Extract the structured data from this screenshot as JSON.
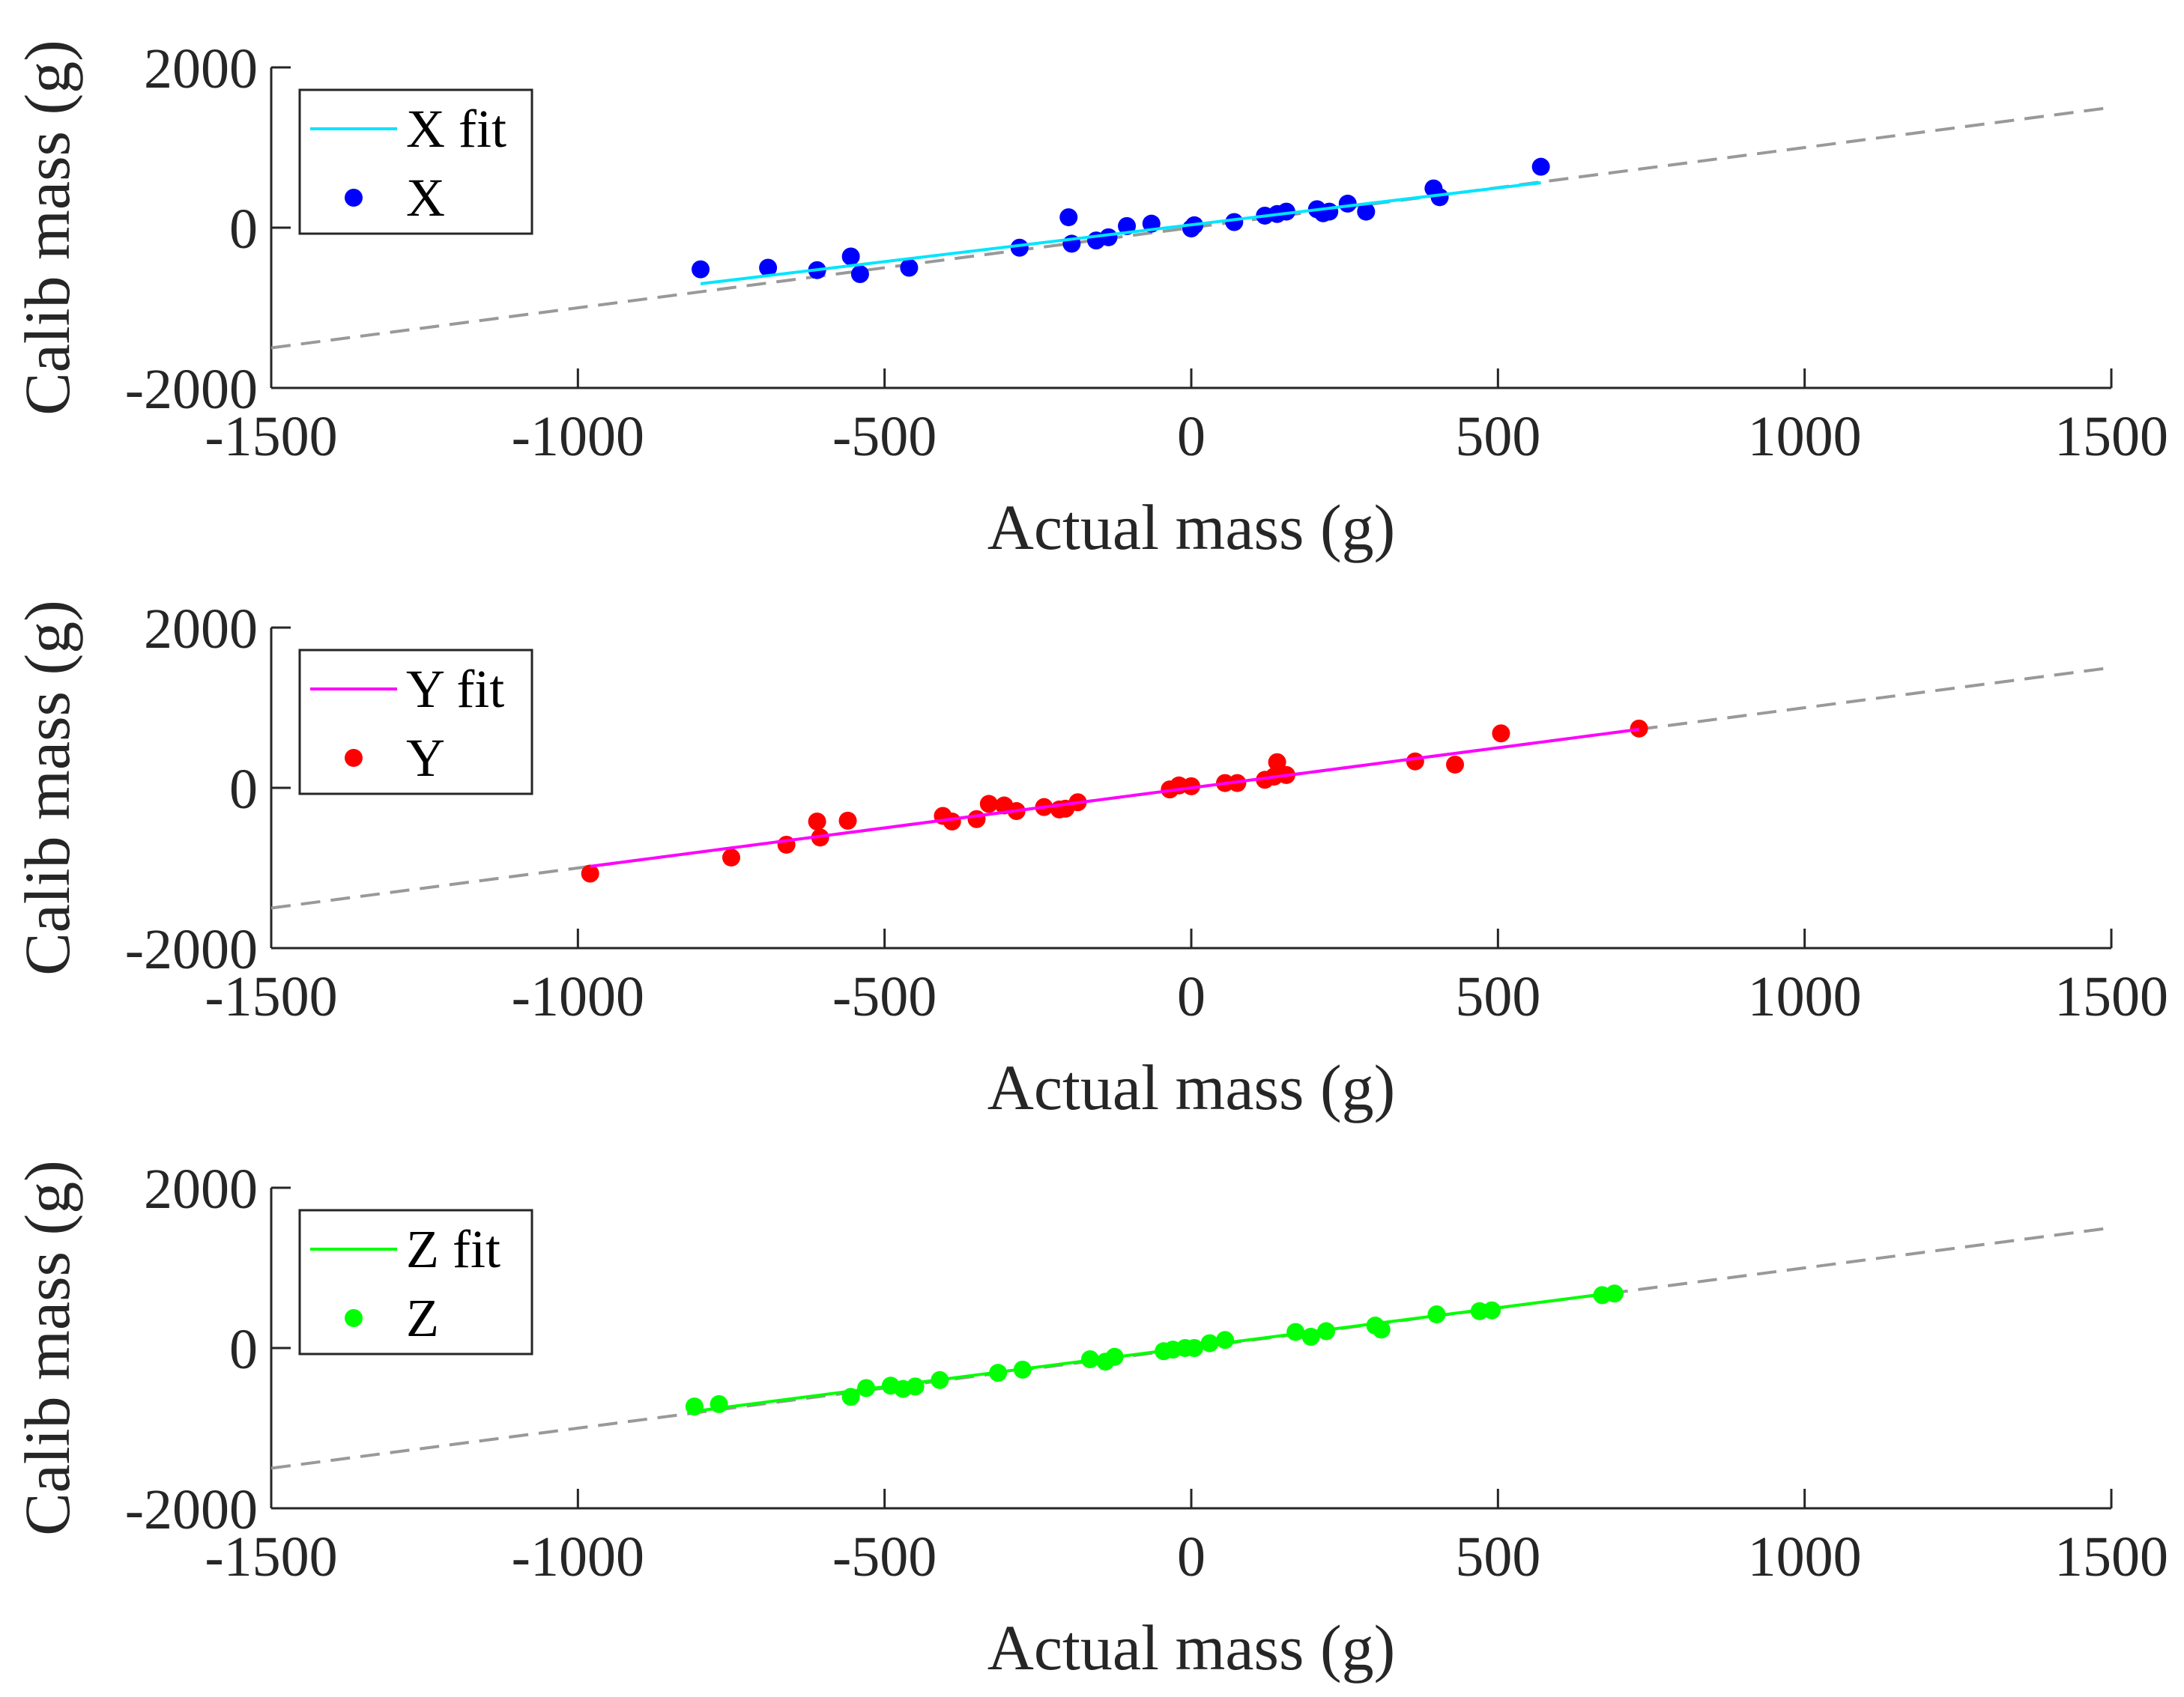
{
  "chart_data": [
    {
      "type": "scatter",
      "xlabel": "Actual mass (g)",
      "ylabel": "Calib mass (g)",
      "xlim": [
        -1500,
        1500
      ],
      "ylim": [
        -2000,
        2000
      ],
      "xticks": [
        -1500,
        -1000,
        -500,
        0,
        500,
        1000,
        1500
      ],
      "yticks": [
        -2000,
        0,
        2000
      ],
      "xtick_labels": [
        "-1500",
        "-1000",
        "-500",
        "0",
        "500",
        "1000",
        "1500"
      ],
      "ytick_labels": [
        "-2000",
        "0",
        "2000"
      ],
      "legend_position": "top-left",
      "reference_line": {
        "x": [
          -1500,
          1500
        ],
        "y": [
          -1500,
          1500
        ],
        "color": "#999999",
        "style": "dashed"
      },
      "fit": {
        "name": "X fit",
        "color": "#00e5ff",
        "x": [
          -800,
          570
        ],
        "y": [
          -700,
          560
        ]
      },
      "series": [
        {
          "name": "X",
          "color": "#0000ff",
          "x": [
            -800,
            -690,
            -610,
            -555,
            -540,
            -460,
            -280,
            -200,
            -195,
            -155,
            -135,
            -105,
            -65,
            0,
            5,
            70,
            120,
            140,
            155,
            205,
            215,
            225,
            255,
            285,
            395,
            405,
            570
          ],
          "y": [
            -520,
            -500,
            -530,
            -360,
            -580,
            -500,
            -250,
            130,
            -200,
            -160,
            -120,
            20,
            50,
            -10,
            30,
            70,
            150,
            170,
            200,
            230,
            180,
            200,
            300,
            200,
            490,
            380,
            760
          ]
        }
      ]
    },
    {
      "type": "scatter",
      "xlabel": "Actual mass (g)",
      "ylabel": "Calib mass (g)",
      "xlim": [
        -1500,
        1500
      ],
      "ylim": [
        -2000,
        2000
      ],
      "xticks": [
        -1500,
        -1000,
        -500,
        0,
        500,
        1000,
        1500
      ],
      "yticks": [
        -2000,
        0,
        2000
      ],
      "xtick_labels": [
        "-1500",
        "-1000",
        "-500",
        "0",
        "500",
        "1000",
        "1500"
      ],
      "ytick_labels": [
        "-2000",
        "0",
        "2000"
      ],
      "legend_position": "top-left",
      "reference_line": {
        "x": [
          -1500,
          1500
        ],
        "y": [
          -1500,
          1500
        ],
        "color": "#999999",
        "style": "dashed"
      },
      "fit": {
        "name": "Y fit",
        "color": "#ff00ff",
        "x": [
          -980,
          730
        ],
        "y": [
          -980,
          730
        ]
      },
      "series": [
        {
          "name": "Y",
          "color": "#ff0000",
          "x": [
            -980,
            -750,
            -660,
            -610,
            -605,
            -560,
            -405,
            -390,
            -350,
            -330,
            -305,
            -285,
            -240,
            -215,
            -205,
            -185,
            -35,
            -20,
            0,
            55,
            75,
            120,
            135,
            140,
            155,
            365,
            430,
            505,
            730
          ],
          "y": [
            -1070,
            -870,
            -710,
            -420,
            -620,
            -410,
            -350,
            -420,
            -390,
            -200,
            -220,
            -290,
            -240,
            -270,
            -260,
            -180,
            -20,
            30,
            20,
            60,
            60,
            100,
            140,
            320,
            160,
            330,
            290,
            680,
            740
          ]
        }
      ]
    },
    {
      "type": "scatter",
      "xlabel": "Actual mass (g)",
      "ylabel": "Calib mass (g)",
      "xlim": [
        -1500,
        1500
      ],
      "ylim": [
        -2000,
        2000
      ],
      "xticks": [
        -1500,
        -1000,
        -500,
        0,
        500,
        1000,
        1500
      ],
      "yticks": [
        -2000,
        0,
        2000
      ],
      "xtick_labels": [
        "-1500",
        "-1000",
        "-500",
        "0",
        "500",
        "1000",
        "1500"
      ],
      "ytick_labels": [
        "-2000",
        "0",
        "2000"
      ],
      "legend_position": "top-left",
      "reference_line": {
        "x": [
          -1500,
          1500
        ],
        "y": [
          -1500,
          1500
        ],
        "color": "#999999",
        "style": "dashed"
      },
      "fit": {
        "name": "Z fit",
        "color": "#00ff00",
        "x": [
          -810,
          690
        ],
        "y": [
          -790,
          690
        ]
      },
      "series": [
        {
          "name": "Z",
          "color": "#00ff00",
          "x": [
            -810,
            -770,
            -555,
            -530,
            -490,
            -470,
            -450,
            -410,
            -315,
            -275,
            -165,
            -140,
            -125,
            -45,
            -30,
            -10,
            5,
            30,
            55,
            170,
            195,
            220,
            300,
            310,
            400,
            470,
            490,
            670,
            690
          ],
          "y": [
            -730,
            -700,
            -610,
            -500,
            -470,
            -510,
            -480,
            -400,
            -310,
            -270,
            -140,
            -170,
            -110,
            -40,
            -20,
            0,
            0,
            60,
            100,
            200,
            140,
            210,
            280,
            230,
            420,
            460,
            470,
            660,
            680
          ]
        }
      ]
    }
  ]
}
